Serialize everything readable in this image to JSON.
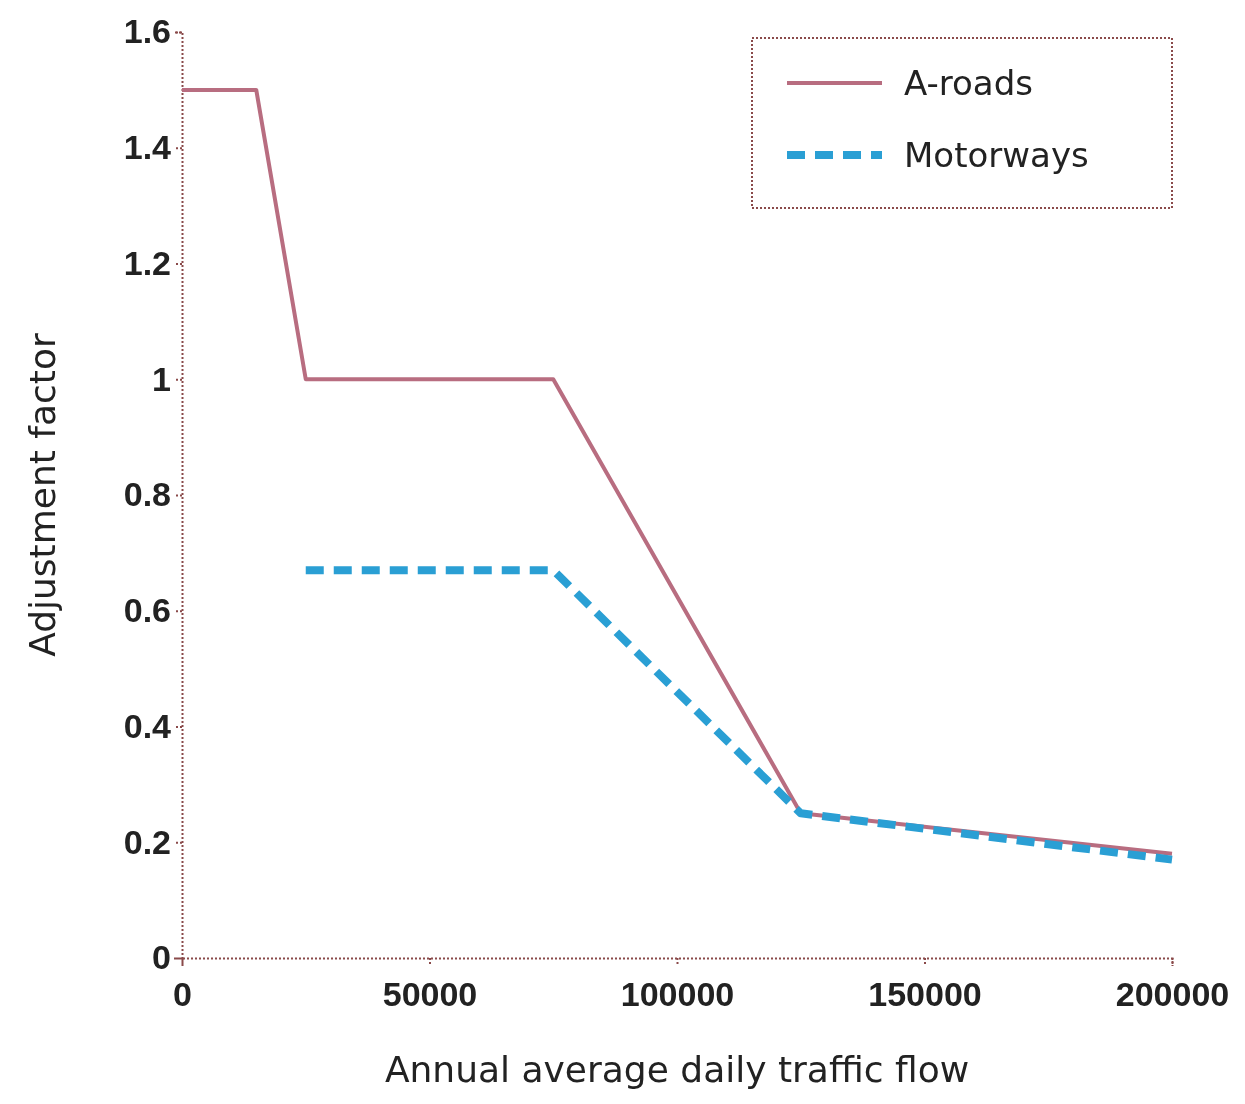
{
  "chart_data": {
    "type": "line",
    "xlabel": "Annual average daily traffic flow",
    "ylabel": "Adjustment factor",
    "series": [
      {
        "name": "A-roads",
        "color": "#b86d80",
        "line_style": "solid",
        "x": [
          0,
          15000,
          25000,
          75000,
          125000,
          200000
        ],
        "values": [
          1.5,
          1.5,
          1.0,
          1.0,
          0.25,
          0.18
        ]
      },
      {
        "name": "Motorways",
        "color": "#2a9fd4",
        "line_style": "dashed",
        "x": [
          25000,
          75000,
          125000,
          200000
        ],
        "values": [
          0.67,
          0.67,
          0.25,
          0.17
        ]
      }
    ],
    "xlim": [
      0,
      200000
    ],
    "xticks": [
      0,
      50000,
      100000,
      150000,
      200000
    ],
    "ylim": [
      0,
      1.6
    ],
    "yticks": [
      0,
      0.2,
      0.4,
      0.6,
      0.8,
      1,
      1.2,
      1.4,
      1.6
    ],
    "grid": false,
    "legend": "top right",
    "marker": "none"
  }
}
